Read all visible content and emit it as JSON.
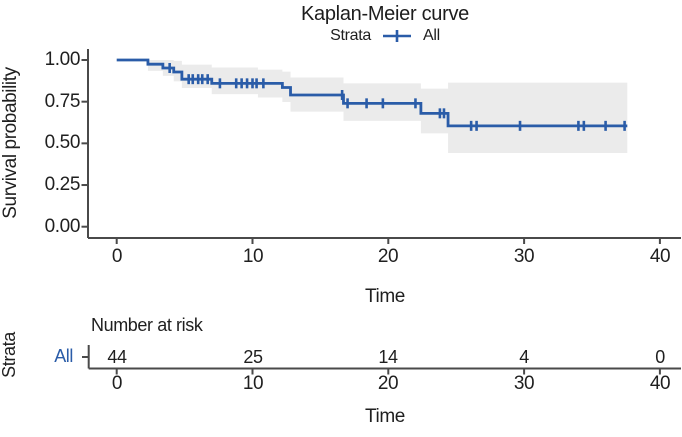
{
  "title": "Kaplan-Meier curve",
  "legend": {
    "title": "Strata",
    "entries": [
      {
        "label": "All"
      }
    ]
  },
  "colors": {
    "curve": "#2A5CA8",
    "band": "#EBEBEB",
    "text": "#1F1F1F",
    "axis": "#4A4A4A"
  },
  "axes": {
    "ylabel": "Survival probability",
    "xlabel": "Time",
    "ytick_labels": [
      "1.00",
      "0.75",
      "0.50",
      "0.25",
      "0.00"
    ],
    "xtick_labels": [
      "0",
      "10",
      "20",
      "30",
      "40"
    ]
  },
  "risk_table": {
    "header": "Number at risk",
    "ylabel": "Strata",
    "row_label": "All",
    "values": [
      "44",
      "25",
      "14",
      "4",
      "0"
    ],
    "xtick_labels": [
      "0",
      "10",
      "20",
      "30",
      "40"
    ],
    "xlabel": "Time"
  },
  "chart_data": {
    "type": "line",
    "subtype": "kaplan-meier-step-curve",
    "title": "Kaplan-Meier curve",
    "xlabel": "Time",
    "ylabel": "Survival probability",
    "xlim": [
      0,
      40
    ],
    "ylim": [
      0.0,
      1.0
    ],
    "xticks": [
      0,
      10,
      20,
      30,
      40
    ],
    "yticks": [
      1.0,
      0.75,
      0.5,
      0.25,
      0.0
    ],
    "grid": false,
    "legend_position": "top",
    "series": [
      {
        "name": "All",
        "color": "#2A5CA8",
        "end_time": 37.6,
        "steps": [
          [
            0,
            1.0
          ],
          [
            2.3,
            0.975
          ],
          [
            3.4,
            0.952
          ],
          [
            4.2,
            0.928
          ],
          [
            4.8,
            0.885
          ],
          [
            7.0,
            0.86
          ],
          [
            12.2,
            0.835
          ],
          [
            12.8,
            0.79
          ],
          [
            16.7,
            0.74
          ],
          [
            22.4,
            0.68
          ],
          [
            24.4,
            0.605
          ]
        ],
        "censor_marks": [
          [
            3.9,
            0.952
          ],
          [
            5.3,
            0.885
          ],
          [
            5.6,
            0.885
          ],
          [
            6.0,
            0.885
          ],
          [
            6.3,
            0.885
          ],
          [
            6.7,
            0.885
          ],
          [
            7.6,
            0.86
          ],
          [
            8.8,
            0.86
          ],
          [
            9.2,
            0.86
          ],
          [
            9.6,
            0.86
          ],
          [
            10.0,
            0.86
          ],
          [
            10.3,
            0.86
          ],
          [
            10.8,
            0.86
          ],
          [
            16.6,
            0.79
          ],
          [
            17.0,
            0.74
          ],
          [
            18.4,
            0.74
          ],
          [
            19.6,
            0.74
          ],
          [
            22.0,
            0.74
          ],
          [
            23.8,
            0.68
          ],
          [
            24.1,
            0.68
          ],
          [
            26.1,
            0.605
          ],
          [
            26.5,
            0.605
          ],
          [
            29.7,
            0.605
          ],
          [
            34.0,
            0.605
          ],
          [
            34.4,
            0.605
          ],
          [
            36.0,
            0.605
          ],
          [
            37.4,
            0.605
          ]
        ],
        "confidence_band": [
          [
            2.3,
            0.935,
            1.0
          ],
          [
            3.4,
            0.905,
            1.0
          ],
          [
            4.2,
            0.872,
            0.995
          ],
          [
            4.8,
            0.832,
            0.972
          ],
          [
            7.0,
            0.795,
            0.955
          ],
          [
            10.4,
            0.775,
            0.942
          ],
          [
            12.2,
            0.748,
            0.93
          ],
          [
            12.8,
            0.69,
            0.895
          ],
          [
            16.7,
            0.635,
            0.86
          ],
          [
            22.4,
            0.56,
            0.828
          ],
          [
            24.4,
            0.442,
            0.864
          ]
        ]
      }
    ],
    "risk_table": {
      "label": "Number at risk",
      "strata": "All",
      "times": [
        0,
        10,
        20,
        30,
        40
      ],
      "counts": [
        44,
        25,
        14,
        4,
        0
      ]
    }
  }
}
